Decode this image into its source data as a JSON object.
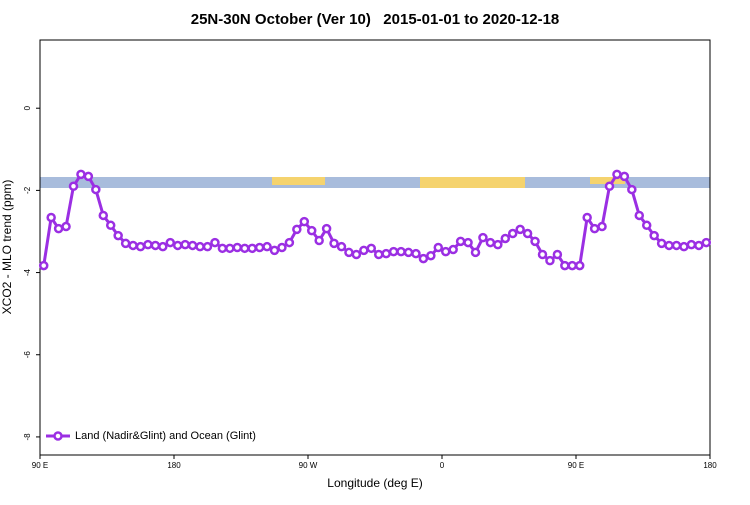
{
  "chart_data": {
    "type": "line",
    "title": "25N-30N October (Ver 10)   2015-01-01 to 2020-12-18",
    "xlabel": "Longitude (deg E)",
    "ylabel": "XCO2 - MLO trend (ppm)",
    "xlim": [
      90,
      540
    ],
    "ylim": [
      -8.44,
      1.66
    ],
    "xticks": [
      {
        "value": 90,
        "label": "90 E"
      },
      180,
      {
        "value": 270,
        "label": "90 W"
      },
      {
        "value": 360,
        "label": "0"
      },
      {
        "value": 450,
        "label": "90 E"
      },
      {
        "value": 540,
        "label": "180"
      }
    ],
    "yticks": [
      0,
      -2,
      -4,
      -6,
      -8
    ],
    "legend": "bottom-left",
    "x": [
      92.5,
      97.5,
      102.5,
      107.5,
      112.5,
      117.5,
      122.5,
      127.5,
      132.5,
      137.5,
      142.5,
      147.5,
      152.5,
      157.5,
      162.5,
      167.5,
      172.5,
      177.5,
      182.5,
      187.5,
      192.5,
      197.5,
      202.5,
      207.5,
      212.5,
      217.5,
      222.5,
      227.5,
      232.5,
      237.5,
      242.5,
      247.5,
      252.5,
      257.5,
      262.5,
      267.5,
      272.5,
      277.5,
      282.5,
      287.5,
      292.5,
      297.5,
      302.5,
      307.5,
      312.5,
      317.5,
      322.5,
      327.5,
      332.5,
      337.5,
      342.5,
      347.5,
      352.5,
      357.5,
      362.5,
      367.5,
      372.5,
      377.5,
      382.5,
      387.5,
      392.5,
      397.5,
      402.5,
      407.5,
      412.5,
      417.5,
      422.5,
      427.5,
      432.5,
      437.5,
      442.5,
      447.5,
      452.5,
      457.5,
      462.5,
      467.5,
      472.5,
      477.5,
      482.5,
      487.5,
      492.5,
      497.5,
      502.5,
      507.5,
      512.5,
      517.5,
      522.5,
      527.5,
      532.5,
      537.5
    ],
    "series": [
      {
        "name": "Land (Nadir&Glint) and Ocean (Glint)",
        "color": "#9b2fe3",
        "values": [
          -3.83,
          -2.66,
          -2.93,
          -2.88,
          -1.9,
          -1.61,
          -1.66,
          -1.98,
          -2.61,
          -2.85,
          -3.1,
          -3.29,
          -3.34,
          -3.37,
          -3.32,
          -3.34,
          -3.37,
          -3.27,
          -3.34,
          -3.32,
          -3.34,
          -3.37,
          -3.37,
          -3.27,
          -3.41,
          -3.41,
          -3.39,
          -3.41,
          -3.41,
          -3.39,
          -3.37,
          -3.46,
          -3.39,
          -3.27,
          -2.95,
          -2.76,
          -2.98,
          -3.22,
          -2.93,
          -3.29,
          -3.37,
          -3.51,
          -3.56,
          -3.46,
          -3.41,
          -3.56,
          -3.54,
          -3.49,
          -3.49,
          -3.51,
          -3.54,
          -3.66,
          -3.59,
          -3.39,
          -3.49,
          -3.44,
          -3.24,
          -3.27,
          -3.51,
          -3.15,
          -3.27,
          -3.32,
          -3.17,
          -3.05,
          -2.95,
          -3.05,
          -3.24,
          -3.56,
          -3.71,
          -3.56,
          -3.83,
          -3.83,
          -3.83,
          -2.66,
          -2.93,
          -2.88,
          -1.9,
          -1.61,
          -1.66,
          -1.98,
          -2.61,
          -2.85,
          -3.1,
          -3.29,
          -3.34,
          -3.34,
          -3.37,
          -3.32,
          -3.34,
          -3.27
        ]
      }
    ]
  }
}
